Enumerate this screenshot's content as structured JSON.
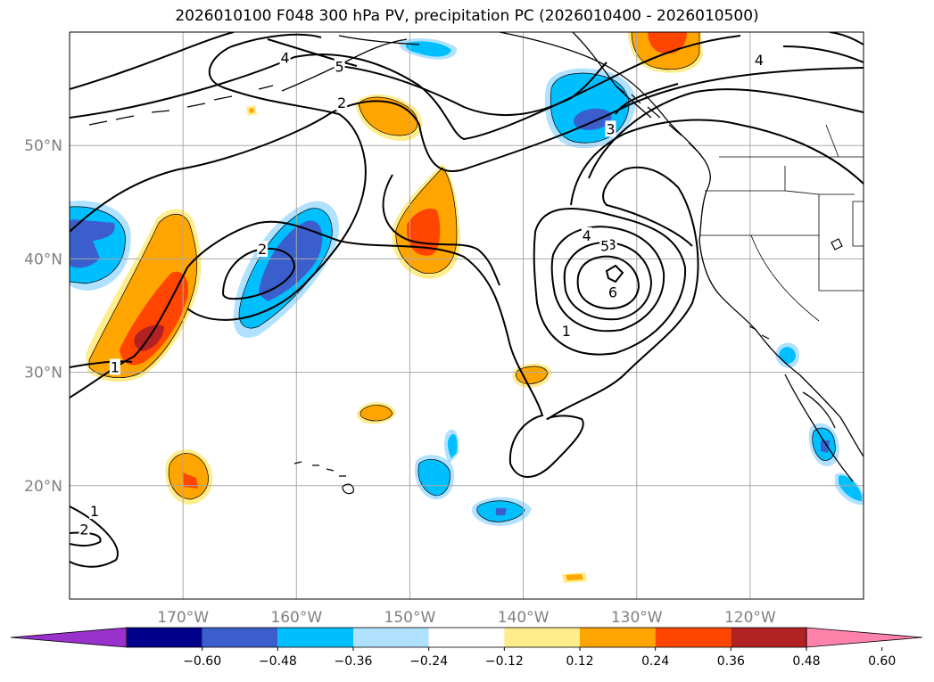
{
  "title": "2026010100 F048 300 hPa PV, precipitation PC (2026010400 - 2026010500)",
  "map": {
    "lon_range": [
      -180,
      -110
    ],
    "lat_range": [
      10,
      60
    ],
    "lon_ticks": [
      {
        "value": -170,
        "label": "170°W"
      },
      {
        "value": -160,
        "label": "160°W"
      },
      {
        "value": -150,
        "label": "150°W"
      },
      {
        "value": -140,
        "label": "140°W"
      },
      {
        "value": -130,
        "label": "130°W"
      },
      {
        "value": -120,
        "label": "120°W"
      }
    ],
    "lat_ticks": [
      {
        "value": 20,
        "label": "20°N"
      },
      {
        "value": 30,
        "label": "30°N"
      },
      {
        "value": 40,
        "label": "40°N"
      },
      {
        "value": 50,
        "label": "50°N"
      }
    ],
    "grid": true,
    "contour_labels": [
      {
        "text": "4",
        "lon": -161.0,
        "lat": 57.7
      },
      {
        "text": "5",
        "lon": -156.2,
        "lat": 56.9
      },
      {
        "text": "2",
        "lon": -156.0,
        "lat": 53.7
      },
      {
        "text": "2",
        "lon": -163.0,
        "lat": 40.8
      },
      {
        "text": "3",
        "lon": -132.2,
        "lat": 41.2
      },
      {
        "text": "4",
        "lon": -134.4,
        "lat": 42.0
      },
      {
        "text": "5",
        "lon": -132.8,
        "lat": 41.1
      },
      {
        "text": "6",
        "lon": -132.1,
        "lat": 37.0
      },
      {
        "text": "3",
        "lon": -132.3,
        "lat": 51.4
      },
      {
        "text": "1",
        "lon": -136.2,
        "lat": 33.6
      },
      {
        "text": "1",
        "lon": -176.0,
        "lat": 30.4
      },
      {
        "text": "1",
        "lon": -177.8,
        "lat": 17.7
      },
      {
        "text": "2",
        "lon": -178.7,
        "lat": 16.1
      },
      {
        "text": "4",
        "lon": -119.2,
        "lat": 57.5
      }
    ]
  },
  "colorbar": {
    "ticks": [
      "−0.60",
      "−0.48",
      "−0.36",
      "−0.24",
      "−0.12",
      "0.12",
      "0.24",
      "0.36",
      "0.48",
      "0.60"
    ],
    "colors": [
      "#9932cc",
      "#00008b",
      "#3a5fcd",
      "#00bfff",
      "#b0e2ff",
      "#ffffff",
      "#ffec8b",
      "#ffa500",
      "#ff4500",
      "#b22222",
      "#ff82ab"
    ]
  }
}
